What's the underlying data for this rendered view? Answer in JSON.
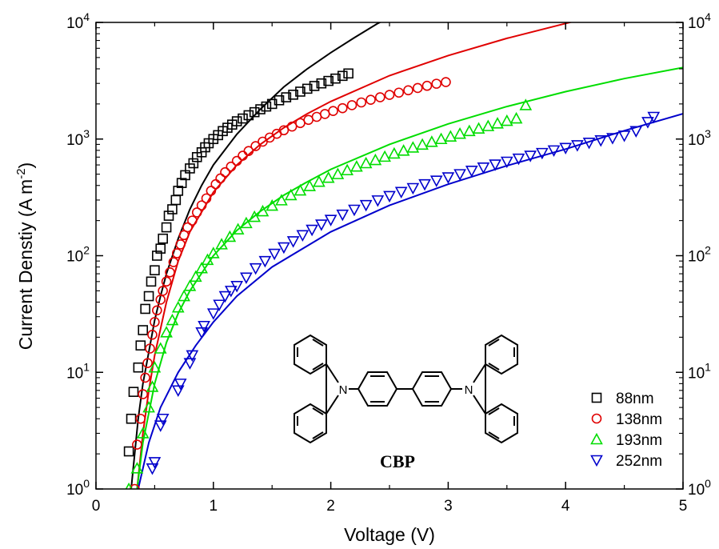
{
  "chart_data": {
    "type": "scatter",
    "title": "",
    "xlabel": "Voltage (V)",
    "ylabel_main": "Current Denstiy (A m",
    "ylabel_sup": "-2",
    "ylabel_tail": ")",
    "xlim": [
      0,
      5
    ],
    "ylim": [
      1,
      10000
    ],
    "yscale": "log",
    "grid": false,
    "legend_position": "bottom-right",
    "x_ticks": [
      {
        "value": 0,
        "label": "0"
      },
      {
        "value": 1,
        "label": "1"
      },
      {
        "value": 2,
        "label": "2"
      },
      {
        "value": 3,
        "label": "3"
      },
      {
        "value": 4,
        "label": "4"
      },
      {
        "value": 5,
        "label": "5"
      }
    ],
    "y_ticks": [
      {
        "value": 1,
        "base": "10",
        "exp": "0"
      },
      {
        "value": 10,
        "base": "10",
        "exp": "1"
      },
      {
        "value": 100,
        "base": "10",
        "exp": "2"
      },
      {
        "value": 1000,
        "base": "10",
        "exp": "3"
      },
      {
        "value": 10000,
        "base": "10",
        "exp": "4"
      }
    ],
    "series": [
      {
        "name": "88nm",
        "marker": "square",
        "color": "#000000",
        "points": [
          [
            0.28,
            2.1
          ],
          [
            0.3,
            4.0
          ],
          [
            0.32,
            6.8
          ],
          [
            0.36,
            11
          ],
          [
            0.38,
            17
          ],
          [
            0.4,
            23
          ],
          [
            0.42,
            35
          ],
          [
            0.45,
            45
          ],
          [
            0.47,
            60
          ],
          [
            0.5,
            75
          ],
          [
            0.52,
            100
          ],
          [
            0.55,
            115
          ],
          [
            0.57,
            140
          ],
          [
            0.6,
            175
          ],
          [
            0.62,
            220
          ],
          [
            0.65,
            250
          ],
          [
            0.68,
            300
          ],
          [
            0.7,
            360
          ],
          [
            0.73,
            420
          ],
          [
            0.76,
            490
          ],
          [
            0.8,
            560
          ],
          [
            0.83,
            620
          ],
          [
            0.86,
            700
          ],
          [
            0.9,
            770
          ],
          [
            0.93,
            850
          ],
          [
            0.96,
            920
          ],
          [
            1.0,
            1000
          ],
          [
            1.04,
            1080
          ],
          [
            1.08,
            1170
          ],
          [
            1.12,
            1250
          ],
          [
            1.16,
            1330
          ],
          [
            1.2,
            1420
          ],
          [
            1.25,
            1500
          ],
          [
            1.3,
            1600
          ],
          [
            1.35,
            1700
          ],
          [
            1.4,
            1800
          ],
          [
            1.45,
            1900
          ],
          [
            1.5,
            2000
          ],
          [
            1.56,
            2150
          ],
          [
            1.62,
            2280
          ],
          [
            1.68,
            2400
          ],
          [
            1.74,
            2550
          ],
          [
            1.8,
            2700
          ],
          [
            1.86,
            2850
          ],
          [
            1.92,
            3000
          ],
          [
            1.98,
            3150
          ],
          [
            2.04,
            3300
          ],
          [
            2.1,
            3480
          ],
          [
            2.15,
            3650
          ]
        ],
        "fit": [
          [
            0.3,
            1
          ],
          [
            0.33,
            2
          ],
          [
            0.36,
            4
          ],
          [
            0.4,
            8
          ],
          [
            0.45,
            15
          ],
          [
            0.5,
            28
          ],
          [
            0.55,
            45
          ],
          [
            0.6,
            70
          ],
          [
            0.7,
            140
          ],
          [
            0.8,
            250
          ],
          [
            0.9,
            400
          ],
          [
            1.0,
            600
          ],
          [
            1.2,
            1100
          ],
          [
            1.4,
            1800
          ],
          [
            1.6,
            2800
          ],
          [
            1.8,
            4000
          ],
          [
            2.0,
            5500
          ],
          [
            2.2,
            7400
          ],
          [
            2.4,
            9800
          ],
          [
            2.46,
            10500
          ]
        ]
      },
      {
        "name": "138nm",
        "marker": "circle",
        "color": "#e00000",
        "points": [
          [
            0.33,
            1.0
          ],
          [
            0.35,
            2.4
          ],
          [
            0.38,
            4.0
          ],
          [
            0.4,
            6.5
          ],
          [
            0.42,
            9
          ],
          [
            0.44,
            12
          ],
          [
            0.46,
            16
          ],
          [
            0.48,
            21
          ],
          [
            0.5,
            27
          ],
          [
            0.52,
            34
          ],
          [
            0.55,
            42
          ],
          [
            0.57,
            50
          ],
          [
            0.6,
            60
          ],
          [
            0.63,
            72
          ],
          [
            0.66,
            88
          ],
          [
            0.69,
            105
          ],
          [
            0.72,
            125
          ],
          [
            0.75,
            150
          ],
          [
            0.78,
            175
          ],
          [
            0.82,
            200
          ],
          [
            0.86,
            235
          ],
          [
            0.9,
            270
          ],
          [
            0.94,
            310
          ],
          [
            0.98,
            360
          ],
          [
            1.02,
            410
          ],
          [
            1.06,
            460
          ],
          [
            1.1,
            520
          ],
          [
            1.15,
            580
          ],
          [
            1.2,
            650
          ],
          [
            1.25,
            720
          ],
          [
            1.3,
            790
          ],
          [
            1.36,
            870
          ],
          [
            1.42,
            950
          ],
          [
            1.48,
            1030
          ],
          [
            1.54,
            1110
          ],
          [
            1.6,
            1190
          ],
          [
            1.67,
            1280
          ],
          [
            1.74,
            1370
          ],
          [
            1.81,
            1460
          ],
          [
            1.88,
            1550
          ],
          [
            1.95,
            1640
          ],
          [
            2.02,
            1740
          ],
          [
            2.1,
            1840
          ],
          [
            2.18,
            1950
          ],
          [
            2.26,
            2060
          ],
          [
            2.34,
            2170
          ],
          [
            2.42,
            2280
          ],
          [
            2.5,
            2390
          ],
          [
            2.58,
            2500
          ],
          [
            2.66,
            2620
          ],
          [
            2.74,
            2740
          ],
          [
            2.82,
            2860
          ],
          [
            2.9,
            2980
          ],
          [
            2.98,
            3080
          ]
        ],
        "fit": [
          [
            0.35,
            1
          ],
          [
            0.4,
            3
          ],
          [
            0.45,
            7
          ],
          [
            0.5,
            14
          ],
          [
            0.6,
            40
          ],
          [
            0.7,
            90
          ],
          [
            0.8,
            160
          ],
          [
            1.0,
            350
          ],
          [
            1.2,
            600
          ],
          [
            1.4,
            900
          ],
          [
            1.6,
            1250
          ],
          [
            1.8,
            1650
          ],
          [
            2.0,
            2100
          ],
          [
            2.5,
            3500
          ],
          [
            3.0,
            5200
          ],
          [
            3.5,
            7300
          ],
          [
            4.0,
            9800
          ],
          [
            4.07,
            10200
          ]
        ]
      },
      {
        "name": "193nm",
        "marker": "triangle-up",
        "color": "#00dd00",
        "points": [
          [
            0.28,
            1.0
          ],
          [
            0.35,
            1.5
          ],
          [
            0.4,
            3.0
          ],
          [
            0.45,
            5.0
          ],
          [
            0.48,
            7.5
          ],
          [
            0.5,
            11
          ],
          [
            0.55,
            16
          ],
          [
            0.6,
            22
          ],
          [
            0.65,
            28
          ],
          [
            0.7,
            36
          ],
          [
            0.75,
            45
          ],
          [
            0.8,
            55
          ],
          [
            0.85,
            66
          ],
          [
            0.9,
            78
          ],
          [
            0.95,
            92
          ],
          [
            1.0,
            105
          ],
          [
            1.07,
            125
          ],
          [
            1.14,
            145
          ],
          [
            1.21,
            168
          ],
          [
            1.28,
            190
          ],
          [
            1.35,
            215
          ],
          [
            1.42,
            240
          ],
          [
            1.5,
            268
          ],
          [
            1.58,
            298
          ],
          [
            1.66,
            330
          ],
          [
            1.74,
            362
          ],
          [
            1.82,
            395
          ],
          [
            1.9,
            430
          ],
          [
            1.98,
            465
          ],
          [
            2.06,
            500
          ],
          [
            2.14,
            540
          ],
          [
            2.22,
            580
          ],
          [
            2.3,
            620
          ],
          [
            2.38,
            660
          ],
          [
            2.46,
            705
          ],
          [
            2.54,
            750
          ],
          [
            2.62,
            795
          ],
          [
            2.7,
            845
          ],
          [
            2.78,
            895
          ],
          [
            2.86,
            945
          ],
          [
            2.94,
            1000
          ],
          [
            3.02,
            1050
          ],
          [
            3.1,
            1110
          ],
          [
            3.18,
            1170
          ],
          [
            3.26,
            1230
          ],
          [
            3.34,
            1290
          ],
          [
            3.42,
            1360
          ],
          [
            3.5,
            1430
          ],
          [
            3.58,
            1500
          ],
          [
            3.66,
            1950
          ]
        ],
        "fit": [
          [
            0.35,
            1
          ],
          [
            0.4,
            2.5
          ],
          [
            0.5,
            8
          ],
          [
            0.6,
            18
          ],
          [
            0.7,
            32
          ],
          [
            0.8,
            50
          ],
          [
            1.0,
            100
          ],
          [
            1.2,
            165
          ],
          [
            1.4,
            240
          ],
          [
            1.6,
            330
          ],
          [
            1.8,
            430
          ],
          [
            2.0,
            550
          ],
          [
            2.5,
            900
          ],
          [
            3.0,
            1350
          ],
          [
            3.5,
            1900
          ],
          [
            4.0,
            2550
          ],
          [
            4.5,
            3300
          ],
          [
            5.0,
            4100
          ]
        ]
      },
      {
        "name": "252nm",
        "marker": "triangle-down",
        "color": "#0000cc",
        "points": [
          [
            0.48,
            1.5
          ],
          [
            0.5,
            1.7
          ],
          [
            0.55,
            3.5
          ],
          [
            0.57,
            4.0
          ],
          [
            0.7,
            7.0
          ],
          [
            0.72,
            8.0
          ],
          [
            0.8,
            12
          ],
          [
            0.82,
            14
          ],
          [
            0.9,
            22
          ],
          [
            0.92,
            25
          ],
          [
            1.0,
            32
          ],
          [
            1.05,
            38
          ],
          [
            1.1,
            45
          ],
          [
            1.15,
            50
          ],
          [
            1.2,
            55
          ],
          [
            1.28,
            65
          ],
          [
            1.36,
            78
          ],
          [
            1.44,
            90
          ],
          [
            1.52,
            104
          ],
          [
            1.6,
            118
          ],
          [
            1.68,
            133
          ],
          [
            1.76,
            150
          ],
          [
            1.84,
            167
          ],
          [
            1.92,
            185
          ],
          [
            2.0,
            203
          ],
          [
            2.1,
            225
          ],
          [
            2.2,
            248
          ],
          [
            2.3,
            272
          ],
          [
            2.4,
            298
          ],
          [
            2.5,
            325
          ],
          [
            2.6,
            352
          ],
          [
            2.7,
            380
          ],
          [
            2.8,
            410
          ],
          [
            2.9,
            440
          ],
          [
            3.0,
            470
          ],
          [
            3.1,
            500
          ],
          [
            3.2,
            535
          ],
          [
            3.3,
            570
          ],
          [
            3.4,
            605
          ],
          [
            3.5,
            640
          ],
          [
            3.6,
            680
          ],
          [
            3.7,
            720
          ],
          [
            3.8,
            760
          ],
          [
            3.9,
            800
          ],
          [
            4.0,
            840
          ],
          [
            4.1,
            885
          ],
          [
            4.2,
            930
          ],
          [
            4.3,
            975
          ],
          [
            4.4,
            1020
          ],
          [
            4.5,
            1070
          ],
          [
            4.6,
            1170
          ],
          [
            4.7,
            1400
          ],
          [
            4.75,
            1550
          ]
        ],
        "fit": [
          [
            0.36,
            1
          ],
          [
            0.45,
            2.5
          ],
          [
            0.55,
            5
          ],
          [
            0.7,
            10
          ],
          [
            0.85,
            17
          ],
          [
            1.0,
            27
          ],
          [
            1.2,
            45
          ],
          [
            1.5,
            80
          ],
          [
            2.0,
            160
          ],
          [
            2.5,
            270
          ],
          [
            3.0,
            410
          ],
          [
            3.5,
            590
          ],
          [
            4.0,
            820
          ],
          [
            4.5,
            1180
          ],
          [
            5.0,
            1650
          ]
        ]
      }
    ]
  },
  "inset": {
    "molecule_name": "CBP",
    "atom_n": "N"
  }
}
